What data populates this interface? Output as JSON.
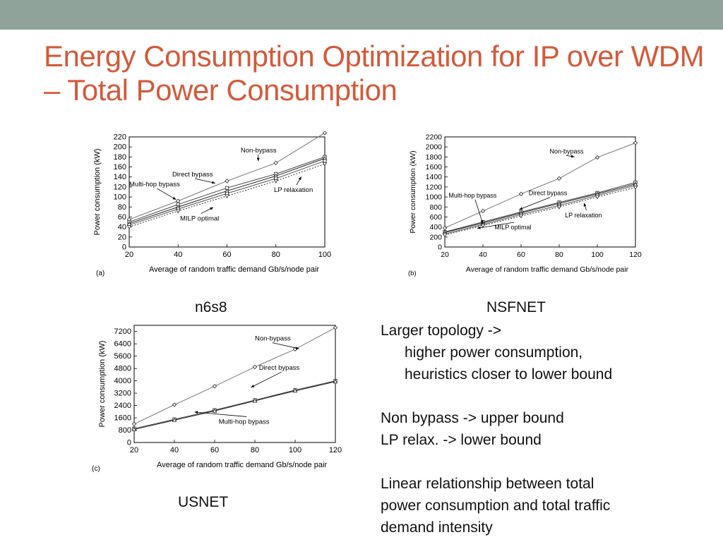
{
  "slide": {
    "title": "Energy Consumption Optimization for IP over WDM – Total Power Consumption",
    "colors": {
      "topbar": "#8fa39a",
      "title": "#d35a3a"
    },
    "captions": {
      "a": "n6s8",
      "b": "NSFNET",
      "c": "USNET"
    },
    "bullets": {
      "l1": "Larger topology ->",
      "l2": "higher power consumption,",
      "l3": "heuristics closer to lower bound",
      "l4": "Non bypass -> upper bound",
      "l5": "LP relax. -> lower bound",
      "l6": "Linear relationship between total",
      "l7": "power consumption and total traffic",
      "l8": "demand intensity"
    }
  },
  "chart_data": [
    {
      "type": "line",
      "panel": "(a)",
      "xlabel": "Average of random traffic demand Gb/s/node pair",
      "ylabel": "Power consumption (kW)",
      "xlim": [
        20,
        100
      ],
      "ylim": [
        0,
        220
      ],
      "xticks": [
        20,
        40,
        60,
        80,
        100
      ],
      "yticks": [
        0,
        20,
        40,
        60,
        80,
        100,
        120,
        140,
        160,
        180,
        200,
        220
      ],
      "x": [
        20,
        40,
        60,
        80,
        100
      ],
      "series": [
        {
          "name": "Non-bypass",
          "values": [
            55,
            92,
            132,
            168,
            228
          ]
        },
        {
          "name": "Direct bypass",
          "values": [
            50,
            85,
            118,
            146,
            180
          ]
        },
        {
          "name": "Multi-hop bypass",
          "values": [
            47,
            80,
            112,
            142,
            177
          ]
        },
        {
          "name": "MILP optimal",
          "values": [
            44,
            76,
            107,
            137,
            172
          ]
        },
        {
          "name": "LP relaxation",
          "values": [
            40,
            72,
            102,
            132,
            166
          ]
        }
      ],
      "annotations": [
        "Non-bypass",
        "Direct bypass",
        "Multi-hop bypass",
        "LP relaxation",
        "MILP optimal"
      ]
    },
    {
      "type": "line",
      "panel": "(b)",
      "xlabel": "Average of random traffic demand Gb/s/node pair",
      "ylabel": "Power consumption (kW)",
      "xlim": [
        20,
        120
      ],
      "ylim": [
        0,
        2200
      ],
      "xticks": [
        20,
        40,
        60,
        80,
        100,
        120
      ],
      "yticks": [
        0,
        200,
        400,
        600,
        800,
        1000,
        1200,
        1400,
        1600,
        1800,
        2000,
        2200
      ],
      "x": [
        20,
        40,
        60,
        80,
        100,
        120
      ],
      "series": [
        {
          "name": "Non-bypass",
          "values": [
            380,
            720,
            1060,
            1370,
            1790,
            2080
          ]
        },
        {
          "name": "Direct bypass",
          "values": [
            300,
            500,
            700,
            890,
            1080,
            1290
          ]
        },
        {
          "name": "Multi-hop bypass",
          "values": [
            290,
            480,
            680,
            870,
            1060,
            1260
          ]
        },
        {
          "name": "MILP optimal",
          "values": [
            260,
            450,
            650,
            830,
            1030,
            1230
          ]
        },
        {
          "name": "LP relaxation",
          "values": [
            240,
            430,
            620,
            800,
            1000,
            1190
          ]
        }
      ],
      "annotations": [
        "Non-bypass",
        "Multi-hop bypass",
        "Direct bypass",
        "LP relaxation",
        "MILP optimal"
      ]
    },
    {
      "type": "line",
      "panel": "(c)",
      "xlabel": "Average of random traffic demand Gb/s/node pair",
      "ylabel": "Power consumption (kW)",
      "xlim": [
        20,
        120
      ],
      "ylim": [
        0,
        7600
      ],
      "xticks": [
        20,
        40,
        60,
        80,
        100,
        120
      ],
      "yticks": [
        0,
        800,
        1600,
        2400,
        3200,
        4000,
        4800,
        5600,
        6400,
        7200
      ],
      "x": [
        20,
        40,
        60,
        80,
        100,
        120
      ],
      "series": [
        {
          "name": "Non-bypass",
          "values": [
            1200,
            2450,
            3650,
            4900,
            6050,
            7450
          ]
        },
        {
          "name": "Direct bypass",
          "values": [
            900,
            1500,
            2100,
            2750,
            3400,
            4000
          ]
        },
        {
          "name": "Multi-hop bypass",
          "values": [
            850,
            1450,
            2050,
            2700,
            3350,
            3950
          ]
        }
      ],
      "annotations": [
        "Non-bypass",
        "Direct bypass",
        "Multi-hop bypass"
      ]
    }
  ]
}
